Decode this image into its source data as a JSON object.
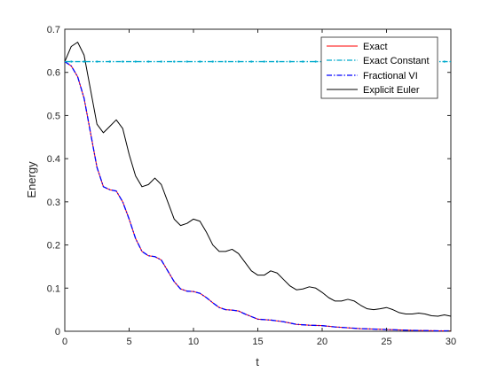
{
  "chart_data": {
    "type": "line",
    "title": "",
    "xlabel": "t",
    "ylabel": "Energy",
    "xlim": [
      0,
      30
    ],
    "ylim": [
      0,
      0.7
    ],
    "xticks": [
      0,
      5,
      10,
      15,
      20,
      25,
      30
    ],
    "yticks": [
      0,
      0.1,
      0.2,
      0.3,
      0.4,
      0.5,
      0.6,
      0.7
    ],
    "xtick_labels": [
      "0",
      "5",
      "10",
      "15",
      "20",
      "25",
      "30"
    ],
    "ytick_labels": [
      "0",
      "0.1",
      "0.2",
      "0.3",
      "0.4",
      "0.5",
      "0.6",
      "0.7"
    ],
    "grid": false,
    "legend_position": "top-right",
    "series": [
      {
        "name": "Exact",
        "color": "#ff0000",
        "style": "solid",
        "x": [
          0,
          0.5,
          1,
          1.5,
          2,
          2.5,
          3,
          3.5,
          4,
          4.5,
          5,
          5.5,
          6,
          6.5,
          7,
          7.5,
          8,
          8.5,
          9,
          9.5,
          10,
          10.5,
          11,
          11.5,
          12,
          12.5,
          13,
          13.5,
          14,
          14.5,
          15,
          16,
          17,
          18,
          19,
          20,
          21,
          22,
          23,
          24,
          25,
          26,
          27,
          28,
          29,
          30
        ],
        "y": [
          0.625,
          0.615,
          0.59,
          0.54,
          0.46,
          0.38,
          0.335,
          0.328,
          0.325,
          0.3,
          0.26,
          0.215,
          0.185,
          0.175,
          0.173,
          0.165,
          0.14,
          0.115,
          0.098,
          0.093,
          0.092,
          0.088,
          0.078,
          0.066,
          0.055,
          0.05,
          0.049,
          0.047,
          0.04,
          0.034,
          0.028,
          0.026,
          0.022,
          0.016,
          0.014,
          0.013,
          0.01,
          0.008,
          0.006,
          0.005,
          0.004,
          0.003,
          0.002,
          0.0015,
          0.001,
          0.001
        ]
      },
      {
        "name": "Exact Constant",
        "color": "#00aacc",
        "style": "dashdot",
        "x": [
          0,
          30
        ],
        "y": [
          0.625,
          0.625
        ]
      },
      {
        "name": "Fractional VI",
        "color": "#0000ff",
        "style": "dashdot",
        "x": [
          0,
          0.5,
          1,
          1.5,
          2,
          2.5,
          3,
          3.5,
          4,
          4.5,
          5,
          5.5,
          6,
          6.5,
          7,
          7.5,
          8,
          8.5,
          9,
          9.5,
          10,
          10.5,
          11,
          11.5,
          12,
          12.5,
          13,
          13.5,
          14,
          14.5,
          15,
          16,
          17,
          18,
          19,
          20,
          21,
          22,
          23,
          24,
          25,
          26,
          27,
          28,
          29,
          30
        ],
        "y": [
          0.625,
          0.615,
          0.59,
          0.54,
          0.46,
          0.38,
          0.335,
          0.328,
          0.325,
          0.3,
          0.26,
          0.215,
          0.185,
          0.175,
          0.173,
          0.165,
          0.14,
          0.115,
          0.098,
          0.093,
          0.092,
          0.088,
          0.078,
          0.066,
          0.055,
          0.05,
          0.049,
          0.047,
          0.04,
          0.034,
          0.028,
          0.026,
          0.022,
          0.016,
          0.014,
          0.013,
          0.01,
          0.008,
          0.006,
          0.005,
          0.004,
          0.003,
          0.002,
          0.0015,
          0.001,
          0.001
        ]
      },
      {
        "name": "Explicit Euler",
        "color": "#000000",
        "style": "solid",
        "x": [
          0,
          0.5,
          1,
          1.5,
          2,
          2.5,
          3,
          3.5,
          4,
          4.5,
          5,
          5.5,
          6,
          6.5,
          7,
          7.5,
          8,
          8.5,
          9,
          9.5,
          10,
          10.5,
          11,
          11.5,
          12,
          12.5,
          13,
          13.5,
          14,
          14.5,
          15,
          15.5,
          16,
          16.5,
          17,
          17.5,
          18,
          18.5,
          19,
          19.5,
          20,
          20.5,
          21,
          21.5,
          22,
          22.5,
          23,
          23.5,
          24,
          24.5,
          25,
          25.5,
          26,
          26.5,
          27,
          27.5,
          28,
          28.5,
          29,
          29.5,
          30
        ],
        "y": [
          0.625,
          0.66,
          0.67,
          0.64,
          0.56,
          0.48,
          0.46,
          0.475,
          0.49,
          0.47,
          0.41,
          0.36,
          0.335,
          0.34,
          0.355,
          0.34,
          0.3,
          0.26,
          0.245,
          0.25,
          0.26,
          0.255,
          0.23,
          0.2,
          0.185,
          0.185,
          0.19,
          0.18,
          0.16,
          0.14,
          0.13,
          0.13,
          0.14,
          0.135,
          0.12,
          0.105,
          0.096,
          0.098,
          0.103,
          0.1,
          0.09,
          0.078,
          0.07,
          0.07,
          0.074,
          0.07,
          0.06,
          0.052,
          0.05,
          0.052,
          0.055,
          0.05,
          0.043,
          0.04,
          0.04,
          0.042,
          0.04,
          0.036,
          0.035,
          0.038,
          0.035
        ]
      }
    ]
  }
}
